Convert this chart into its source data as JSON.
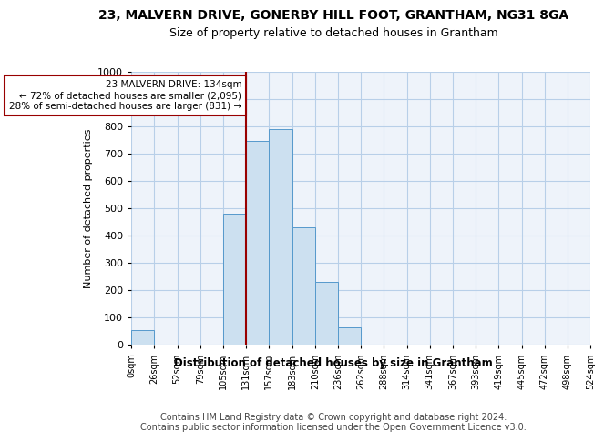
{
  "title": "23, MALVERN DRIVE, GONERBY HILL FOOT, GRANTHAM, NG31 8GA",
  "subtitle": "Size of property relative to detached houses in Grantham",
  "xlabel": "Distribution of detached houses by size in Grantham",
  "ylabel": "Number of detached properties",
  "bar_color": "#cce0f0",
  "bar_edge_color": "#5599cc",
  "property_line_color": "#990000",
  "annotation_box_color": "#990000",
  "tick_labels": [
    "0sqm",
    "26sqm",
    "52sqm",
    "79sqm",
    "105sqm",
    "131sqm",
    "157sqm",
    "183sqm",
    "210sqm",
    "236sqm",
    "262sqm",
    "288sqm",
    "314sqm",
    "341sqm",
    "367sqm",
    "393sqm",
    "419sqm",
    "445sqm",
    "472sqm",
    "498sqm",
    "524sqm"
  ],
  "bar_heights": [
    55,
    0,
    0,
    0,
    480,
    748,
    790,
    430,
    230,
    65,
    0,
    0,
    0,
    0,
    0,
    0,
    0,
    0,
    0,
    0
  ],
  "property_line_x": 4.5,
  "annotation_text": "23 MALVERN DRIVE: 134sqm\n← 72% of detached houses are smaller (2,095)\n28% of semi-detached houses are larger (831) →",
  "ylim": [
    0,
    1000
  ],
  "yticks": [
    0,
    100,
    200,
    300,
    400,
    500,
    600,
    700,
    800,
    900,
    1000
  ],
  "footer_text": "Contains HM Land Registry data © Crown copyright and database right 2024.\nContains public sector information licensed under the Open Government Licence v3.0.",
  "background_color": "#eef3fa",
  "grid_color": "#b8cfe8"
}
